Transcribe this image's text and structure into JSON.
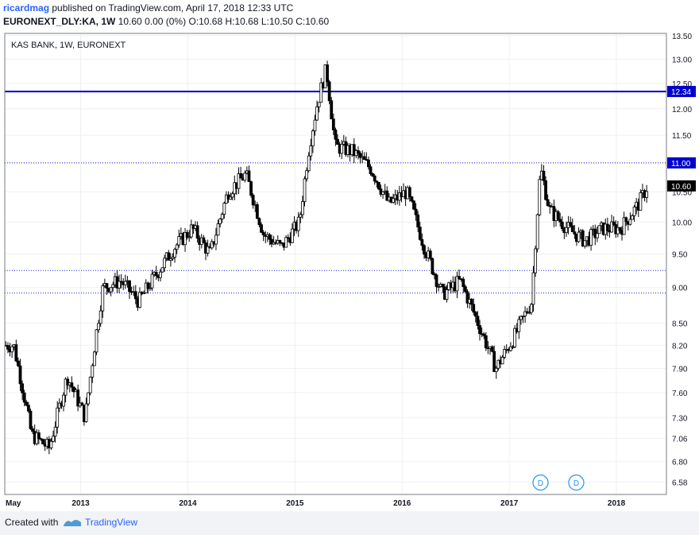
{
  "header": {
    "user": "ricardmag",
    "published": "published on TradingView.com, April 17, 2018 12:33 UTC"
  },
  "symbol": {
    "ticker": "EURONEXT_DLY:KA, 1W",
    "change": "10.60 0.00 (0%)",
    "ohlc": "O:10.68 H:10.68 L:10.50 C:10.60"
  },
  "footer": {
    "created_with": "Created with",
    "brand": "TradingView"
  },
  "colors": {
    "line": "#0000cc",
    "dotted": "#2222dd",
    "candle": "#000000",
    "last_price_bg": "#000000"
  },
  "chart_data": {
    "type": "line",
    "title": "KAS BANK, 1W, EURONEXT",
    "x_tick_labels": [
      "May",
      "2013",
      "2014",
      "2015",
      "2016",
      "2017",
      "2018"
    ],
    "y_tick_labels": [
      "13.50",
      "13.00",
      "12.50",
      "12.00",
      "11.50",
      "11.00",
      "10.50",
      "10.00",
      "9.50",
      "9.00",
      "8.50",
      "8.20",
      "7.90",
      "7.60",
      "7.30",
      "7.06",
      "6.80",
      "6.58"
    ],
    "ylim": [
      6.45,
      13.55
    ],
    "grid": true,
    "horizontal_lines": [
      {
        "value": 12.34,
        "label": "12.34",
        "style": "solid"
      },
      {
        "value": 11.0,
        "label": "11.00",
        "style": "dotted"
      },
      {
        "value": 9.25,
        "label": "",
        "style": "dotted"
      },
      {
        "value": 8.92,
        "label": "",
        "style": "dotted"
      }
    ],
    "last_price": {
      "value": 10.6,
      "label": "10.60"
    },
    "dividend_markers": [
      {
        "date": "2017-04",
        "label": "D"
      },
      {
        "date": "2017-08",
        "label": "D"
      }
    ],
    "x": [
      "2012-05",
      "2012-07",
      "2012-09",
      "2012-11",
      "2013-01",
      "2013-03",
      "2013-05",
      "2013-07",
      "2013-09",
      "2013-11",
      "2014-01",
      "2014-03",
      "2014-05",
      "2014-07",
      "2014-09",
      "2014-11",
      "2015-01",
      "2015-02",
      "2015-03",
      "2015-04",
      "2015-05",
      "2015-07",
      "2015-09",
      "2015-11",
      "2016-01",
      "2016-03",
      "2016-05",
      "2016-07",
      "2016-09",
      "2016-11",
      "2017-01",
      "2017-03",
      "2017-04",
      "2017-05",
      "2017-07",
      "2017-09",
      "2017-11",
      "2018-01",
      "2018-03",
      "2018-04"
    ],
    "series": [
      {
        "values": [
          8.2,
          7.1,
          6.95,
          7.8,
          7.3,
          9.0,
          9.1,
          8.8,
          9.2,
          9.6,
          9.9,
          9.5,
          10.5,
          10.8,
          9.8,
          9.6,
          10.0,
          11.2,
          12.1,
          12.8,
          11.3,
          11.2,
          10.9,
          10.3,
          10.5,
          9.6,
          8.9,
          9.1,
          8.5,
          7.9,
          8.3,
          8.8,
          10.9,
          10.2,
          9.9,
          9.7,
          9.9,
          9.9,
          10.3,
          10.6
        ]
      }
    ]
  }
}
